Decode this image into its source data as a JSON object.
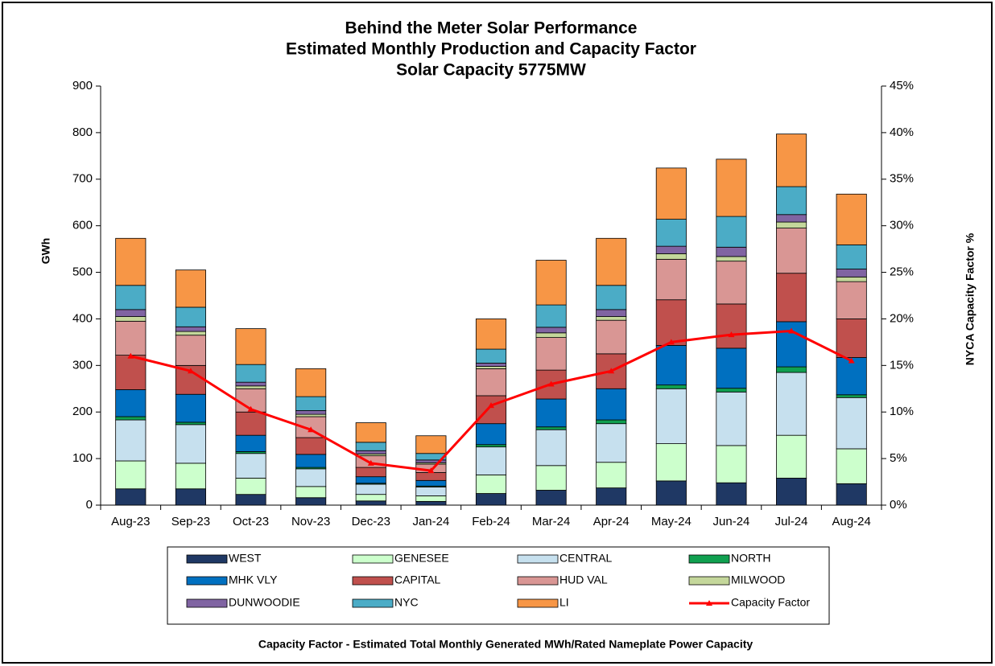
{
  "chart_data": {
    "type": "bar",
    "stacked": true,
    "title": [
      "Behind the Meter Solar Performance",
      "Estimated Monthly Production and Capacity Factor",
      "Solar Capacity 5775MW"
    ],
    "ylabel": "GWh",
    "y2label": "NYCA  Capacity  Factor %",
    "note": "Capacity Factor  - Estimated Total  Monthly Generated MWh/Rated Nameplate Power Capacity",
    "categories": [
      "Aug-23",
      "Sep-23",
      "Oct-23",
      "Nov-23",
      "Dec-23",
      "Jan-24",
      "Feb-24",
      "Mar-24",
      "Apr-24",
      "May-24",
      "Jun-24",
      "Jul-24",
      "Aug-24"
    ],
    "ylim": [
      0,
      900
    ],
    "yticks": [
      0,
      100,
      200,
      300,
      400,
      500,
      600,
      700,
      800,
      900
    ],
    "y2lim": [
      0,
      45
    ],
    "y2ticks": [
      {
        "value": 0,
        "label": "0%"
      },
      {
        "value": 5,
        "label": "5%"
      },
      {
        "value": 10,
        "label": "10%"
      },
      {
        "value": 15,
        "label": "15%"
      },
      {
        "value": 20,
        "label": "20%"
      },
      {
        "value": 25,
        "label": "25%"
      },
      {
        "value": 30,
        "label": "30%"
      },
      {
        "value": 35,
        "label": "35%"
      },
      {
        "value": 40,
        "label": "40%"
      },
      {
        "value": 45,
        "label": "45%"
      }
    ],
    "grid": false,
    "series": [
      {
        "name": "WEST",
        "color": "#1f3864",
        "values": [
          35,
          35,
          23,
          16,
          9,
          8,
          25,
          32,
          37,
          52,
          48,
          58,
          46
        ]
      },
      {
        "name": "GENESEE",
        "color": "#ccffcc",
        "values": [
          60,
          55,
          35,
          24,
          14,
          12,
          40,
          53,
          55,
          80,
          80,
          92,
          75
        ]
      },
      {
        "name": "CENTRAL",
        "color": "#c6e0ee",
        "values": [
          88,
          83,
          53,
          38,
          22,
          19,
          60,
          77,
          83,
          118,
          115,
          135,
          110
        ]
      },
      {
        "name": "NORTH",
        "color": "#10a050",
        "values": [
          7,
          5,
          4,
          3,
          2,
          2,
          5,
          6,
          8,
          8,
          8,
          12,
          6
        ]
      },
      {
        "name": "MHK VLY",
        "color": "#0070c0",
        "values": [
          58,
          60,
          35,
          28,
          14,
          12,
          45,
          60,
          67,
          85,
          86,
          97,
          80
        ]
      },
      {
        "name": "CAPITAL",
        "color": "#c0504d",
        "values": [
          74,
          62,
          50,
          36,
          20,
          17,
          60,
          62,
          75,
          98,
          95,
          104,
          83
        ]
      },
      {
        "name": "HUD VAL",
        "color": "#d99694",
        "values": [
          73,
          65,
          50,
          45,
          25,
          18,
          58,
          70,
          72,
          87,
          92,
          97,
          80
        ]
      },
      {
        "name": "MILWOOD",
        "color": "#c4d79b",
        "values": [
          10,
          8,
          6,
          5,
          4,
          3,
          5,
          10,
          8,
          12,
          10,
          13,
          10
        ]
      },
      {
        "name": "DUNWOODIE",
        "color": "#8064a2",
        "values": [
          15,
          10,
          8,
          8,
          7,
          6,
          7,
          12,
          15,
          16,
          20,
          16,
          17
        ]
      },
      {
        "name": "NYC",
        "color": "#4bacc6",
        "values": [
          52,
          42,
          38,
          30,
          18,
          14,
          30,
          48,
          52,
          58,
          66,
          60,
          52
        ]
      },
      {
        "name": "LI",
        "color": "#f79646",
        "values": [
          101,
          80,
          77,
          60,
          42,
          38,
          65,
          96,
          101,
          110,
          123,
          113,
          109
        ]
      },
      {
        "name": "Capacity Factor",
        "color": "#ff0000",
        "axis": "y2",
        "type": "line",
        "values": [
          16.0,
          14.4,
          10.3,
          8.1,
          4.5,
          3.7,
          10.7,
          13.0,
          14.4,
          17.5,
          18.3,
          18.7,
          15.5
        ]
      }
    ]
  }
}
